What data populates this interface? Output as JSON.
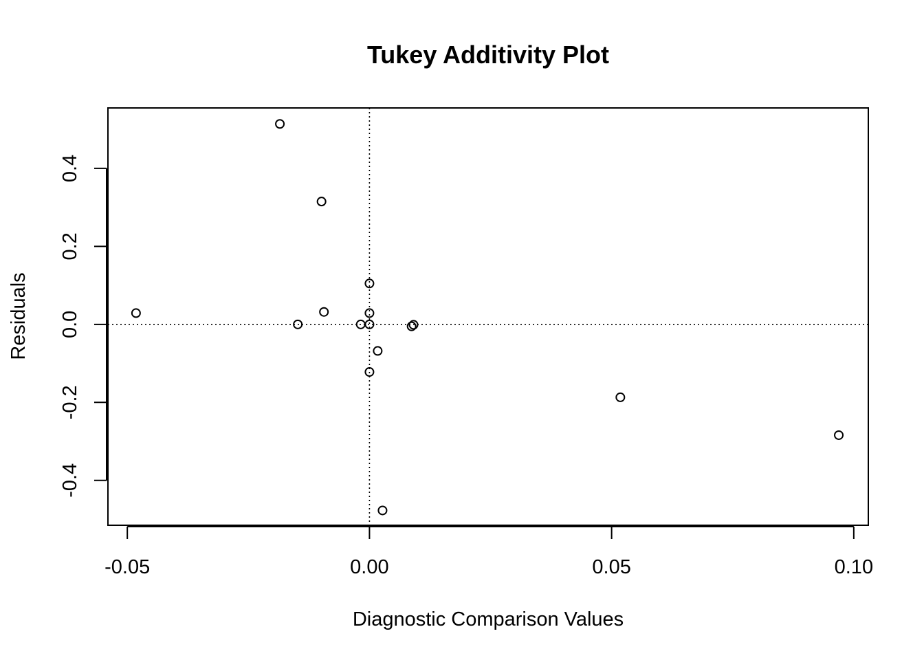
{
  "chart_data": {
    "type": "scatter",
    "title": "Tukey Additivity Plot",
    "xlabel": "Diagnostic Comparison Values",
    "ylabel": "Residuals",
    "xlim": [
      -0.054,
      0.103
    ],
    "ylim": [
      -0.515,
      0.555
    ],
    "xticks": [
      {
        "value": -0.05,
        "label": "-0.05"
      },
      {
        "value": 0.0,
        "label": "0.00"
      },
      {
        "value": 0.05,
        "label": "0.05"
      },
      {
        "value": 0.1,
        "label": "0.10"
      }
    ],
    "yticks": [
      {
        "value": -0.4,
        "label": "-0.4"
      },
      {
        "value": -0.2,
        "label": "-0.2"
      },
      {
        "value": 0.0,
        "label": "0.0"
      },
      {
        "value": 0.2,
        "label": "0.2"
      },
      {
        "value": 0.4,
        "label": "0.4"
      }
    ],
    "reference_lines": {
      "vertical_x": 0.0,
      "horizontal_y": 0.0,
      "style": "dotted"
    },
    "grid": false,
    "legend": "none",
    "points": [
      {
        "x": -0.0482,
        "y": 0.029
      },
      {
        "x": -0.0185,
        "y": 0.514
      },
      {
        "x": -0.0099,
        "y": 0.315
      },
      {
        "x": -0.0094,
        "y": 0.032
      },
      {
        "x": -0.0148,
        "y": 0.0
      },
      {
        "x": -0.0018,
        "y": 0.0
      },
      {
        "x": 0.0,
        "y": 0.105
      },
      {
        "x": 0.0,
        "y": 0.029
      },
      {
        "x": 0.0,
        "y": 0.0
      },
      {
        "x": 0.0,
        "y": -0.122
      },
      {
        "x": 0.0017,
        "y": -0.068
      },
      {
        "x": 0.0027,
        "y": -0.477
      },
      {
        "x": 0.0087,
        "y": -0.005
      },
      {
        "x": 0.0091,
        "y": -0.001
      },
      {
        "x": 0.0518,
        "y": -0.187
      },
      {
        "x": 0.0969,
        "y": -0.284
      }
    ]
  }
}
